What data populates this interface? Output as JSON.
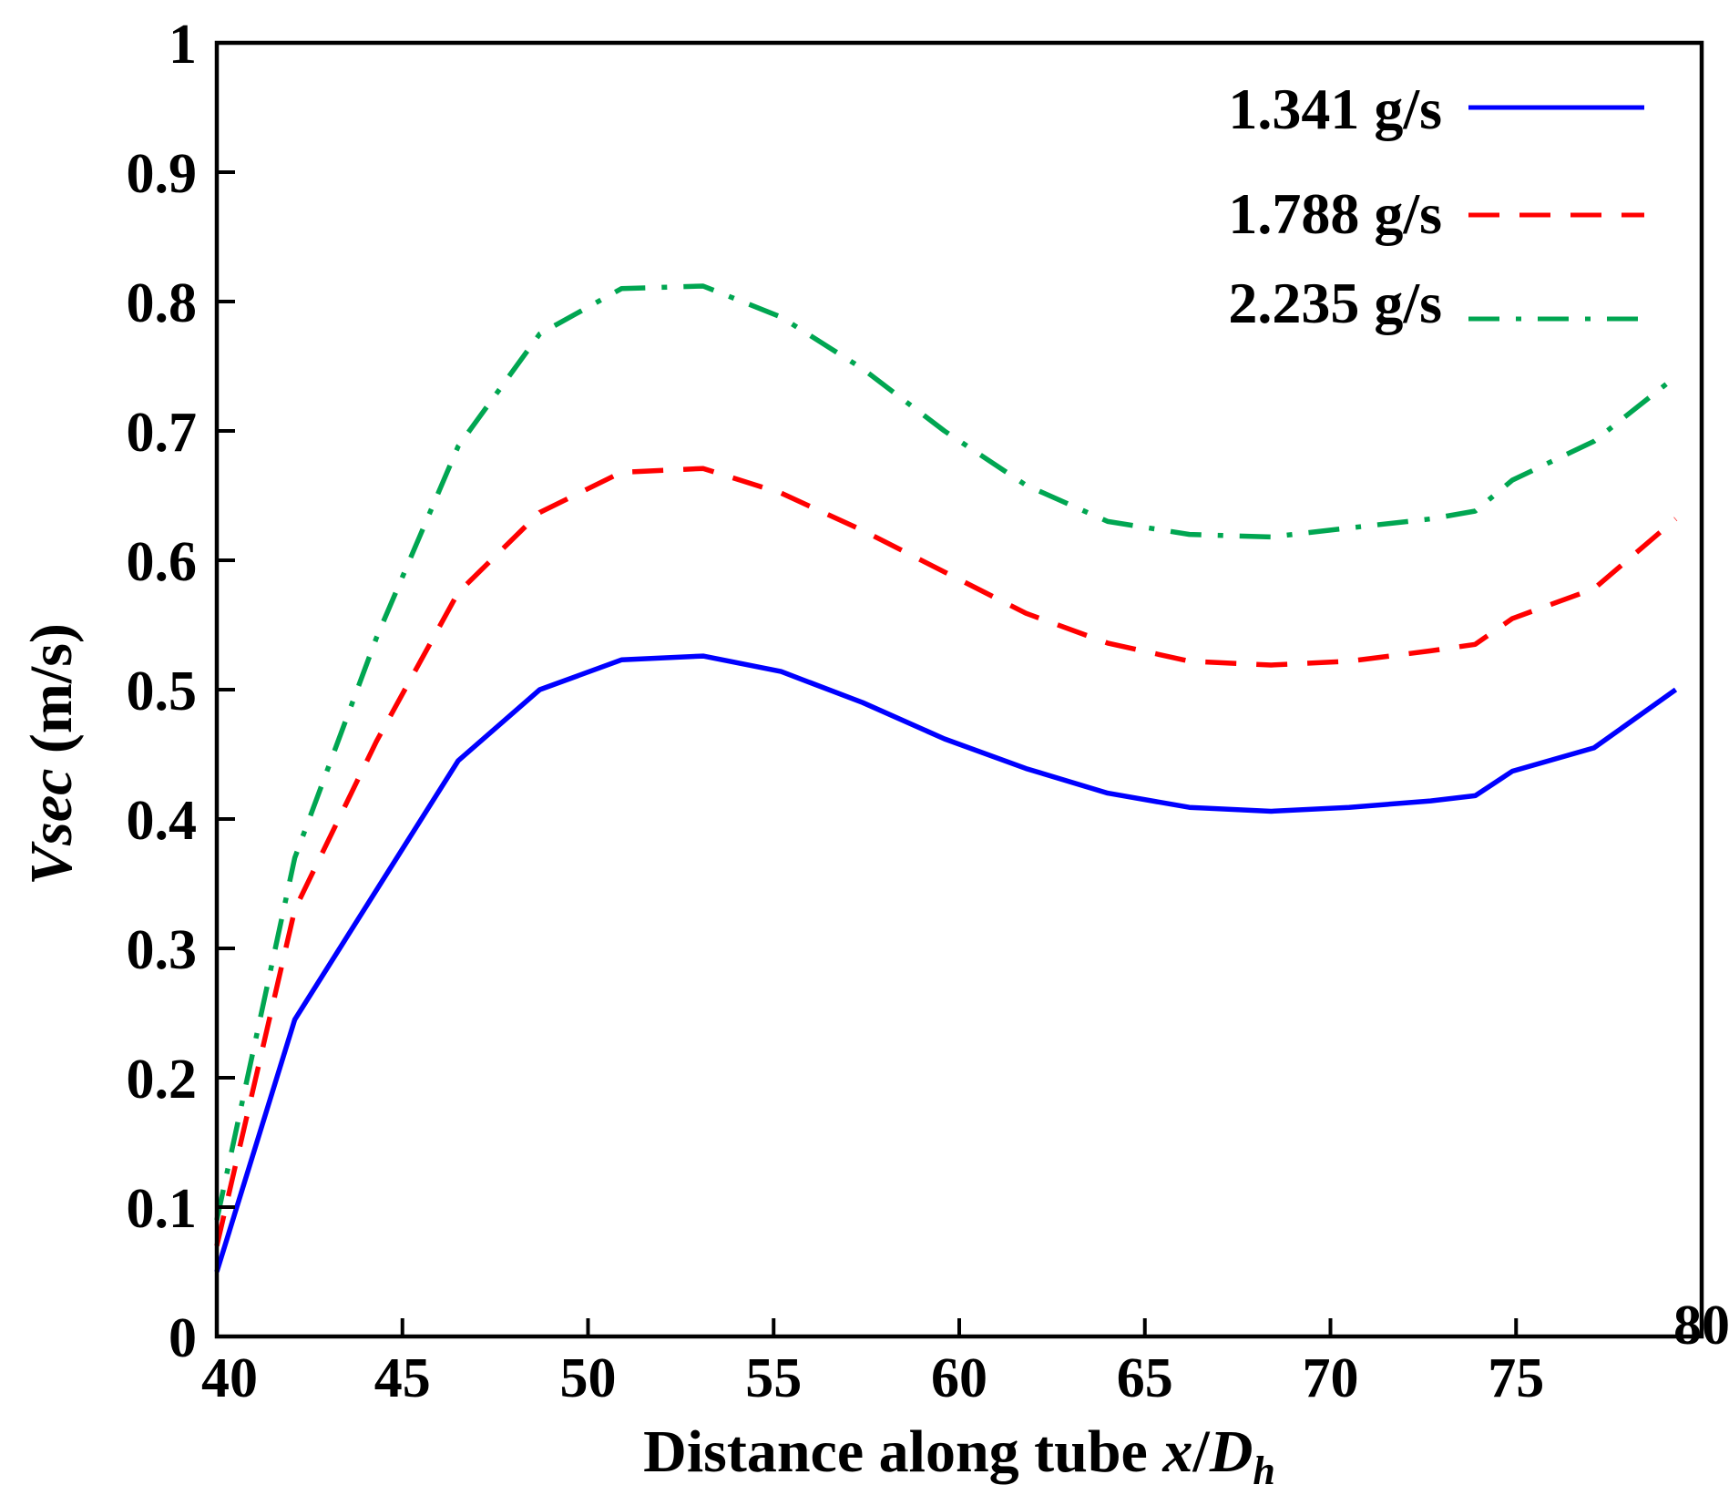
{
  "chart_data": {
    "type": "line",
    "title": "",
    "xlabel": {
      "prefix": "Distance along tube ",
      "var_x": "x",
      "slash": "/",
      "var_D": "D",
      "sub": "h"
    },
    "ylabel": {
      "var": "Vsec",
      "unit": " (m/s)"
    },
    "xlim": [
      40,
      80
    ],
    "ylim": [
      0,
      1
    ],
    "xticks": [
      "40",
      "45",
      "50",
      "55",
      "60",
      "65",
      "70",
      "75",
      "80"
    ],
    "yticks": [
      "0",
      "0.1",
      "0.2",
      "0.3",
      "0.4",
      "0.5",
      "0.6",
      "0.7",
      "0.8",
      "0.9",
      "1"
    ],
    "legend_position": "top-right",
    "grid": false,
    "series": [
      {
        "name": "1.341 g/s",
        "color": "#0000ff",
        "style": "solid",
        "x": [
          40,
          42.1,
          44.3,
          46.5,
          48.7,
          50.9,
          53.1,
          55.2,
          57.4,
          59.6,
          61.8,
          64.0,
          66.2,
          68.4,
          70.5,
          72.7,
          73.9,
          74.9,
          77.1,
          79.3
        ],
        "y": [
          0.05,
          0.245,
          0.345,
          0.445,
          0.5,
          0.523,
          0.526,
          0.514,
          0.49,
          0.462,
          0.439,
          0.42,
          0.409,
          0.406,
          0.409,
          0.414,
          0.418,
          0.437,
          0.455,
          0.5
        ]
      },
      {
        "name": "1.788 g/s",
        "color": "#ff0000",
        "style": "dashed",
        "x": [
          40,
          42.1,
          44.3,
          46.5,
          48.7,
          50.9,
          53.1,
          55.2,
          57.4,
          59.6,
          61.8,
          64.0,
          66.2,
          68.4,
          70.5,
          72.7,
          73.9,
          74.9,
          77.1,
          79.3
        ],
        "y": [
          0.07,
          0.33,
          0.46,
          0.575,
          0.637,
          0.668,
          0.671,
          0.652,
          0.623,
          0.591,
          0.559,
          0.536,
          0.522,
          0.519,
          0.522,
          0.53,
          0.535,
          0.555,
          0.578,
          0.632
        ]
      },
      {
        "name": "2.235 g/s",
        "color": "#00a651",
        "style": "dashdot",
        "x": [
          40,
          42.1,
          44.3,
          46.5,
          48.7,
          50.9,
          53.1,
          55.2,
          57.4,
          59.6,
          61.8,
          64.0,
          66.2,
          68.4,
          70.5,
          72.7,
          73.9,
          74.9,
          77.1,
          79.3
        ],
        "y": [
          0.09,
          0.37,
          0.54,
          0.688,
          0.775,
          0.81,
          0.812,
          0.788,
          0.748,
          0.7,
          0.658,
          0.63,
          0.62,
          0.618,
          0.625,
          0.632,
          0.638,
          0.662,
          0.692,
          0.742
        ]
      }
    ]
  }
}
